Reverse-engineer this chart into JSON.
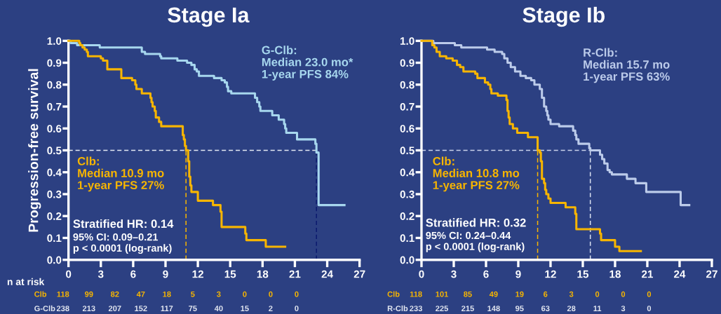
{
  "chart_data": [
    {
      "type": "step",
      "title": "Stage Ia",
      "ylabel": "Progression-free survival",
      "xlim": [
        0,
        27
      ],
      "xticks": [
        0,
        3,
        6,
        9,
        12,
        15,
        18,
        21,
        24,
        27
      ],
      "ylim": [
        0.0,
        1.0
      ],
      "yticks": [
        {
          "value": 0.0,
          "label": "0.0"
        },
        {
          "value": 0.1,
          "label": "0.1"
        },
        {
          "value": 0.2,
          "label": "0.2"
        },
        {
          "value": 0.3,
          "label": "0.3"
        },
        {
          "value": 0.4,
          "label": "0.4"
        },
        {
          "value": 0.5,
          "label": "0.5"
        },
        {
          "value": 0.6,
          "label": "0.6"
        },
        {
          "value": 0.7,
          "label": "0.7"
        },
        {
          "value": 0.8,
          "label": "0.8"
        },
        {
          "value": 0.9,
          "label": "0.9"
        },
        {
          "value": 1.0,
          "label": "1.0"
        }
      ],
      "series": [
        {
          "color": "#f7b500",
          "x": [
            0,
            1.0,
            1.1,
            1.3,
            1.5,
            1.7,
            1.8,
            3.0,
            3.2,
            3.6,
            4.9,
            5.9,
            6.2,
            6.3,
            6.8,
            7.6,
            7.7,
            7.8,
            8.0,
            8.1,
            8.4,
            8.6,
            10.6,
            10.7,
            10.8,
            10.9,
            11.1,
            11.2,
            11.3,
            11.4,
            12.0,
            13.4,
            14.1,
            14.2,
            16.4,
            16.5,
            18.3,
            20.1
          ],
          "values": [
            1.0,
            0.99,
            0.98,
            0.97,
            0.96,
            0.95,
            0.93,
            0.92,
            0.91,
            0.87,
            0.83,
            0.82,
            0.8,
            0.78,
            0.76,
            0.74,
            0.72,
            0.7,
            0.68,
            0.65,
            0.63,
            0.61,
            0.57,
            0.55,
            0.52,
            0.5,
            0.45,
            0.38,
            0.34,
            0.31,
            0.27,
            0.25,
            0.22,
            0.15,
            0.12,
            0.09,
            0.06,
            0.06
          ]
        },
        {
          "color": "#a7d7ee",
          "x": [
            0,
            0.2,
            0.8,
            2.9,
            6.8,
            7.1,
            8.5,
            8.6,
            10.1,
            11.0,
            11.4,
            11.7,
            11.9,
            12.1,
            13.5,
            14.2,
            14.5,
            14.7,
            14.8,
            15.1,
            17.3,
            17.5,
            17.7,
            17.8,
            18.9,
            19.5,
            20.0,
            20.1,
            20.2,
            21.2,
            22.9,
            23.0,
            23.2,
            25.6
          ],
          "values": [
            1.0,
            0.99,
            0.98,
            0.97,
            0.95,
            0.94,
            0.93,
            0.92,
            0.91,
            0.9,
            0.89,
            0.87,
            0.86,
            0.84,
            0.83,
            0.82,
            0.81,
            0.79,
            0.77,
            0.76,
            0.74,
            0.72,
            0.7,
            0.68,
            0.66,
            0.64,
            0.62,
            0.6,
            0.58,
            0.55,
            0.53,
            0.49,
            0.25,
            0.25
          ]
        }
      ],
      "ref_lines": [
        {
          "axis": "y",
          "value": 0.5,
          "color": "#e4e9f4",
          "line_style": "dashed"
        },
        {
          "axis": "x",
          "value": 10.9,
          "color": "#f7b500",
          "line_style": "dashed"
        },
        {
          "axis": "x",
          "value": 23.0,
          "color": "#0b1a6e",
          "line_style": "dashed"
        }
      ],
      "annotations": [
        "G-Clb:\nMedian 23.0 mo*\n1-year PFS 84%",
        "Clb:\nMedian 10.9 mo\n1-year PFS 27%",
        "Stratified HR: 0.14\n95% CI: 0.09–0.21\np < 0.0001 (log-rank)",
        "Clb 118 99 82 47 18 5 3 0 0 0",
        "G-Clb 238 213 207 152 117 75 40 15 2 0",
        "n at risk"
      ]
    },
    {
      "type": "step",
      "title": "Stage Ib",
      "xlim": [
        0,
        27
      ],
      "xticks": [
        0,
        3,
        6,
        9,
        12,
        15,
        18,
        21,
        24,
        27
      ],
      "ylim": [
        0.0,
        1.0
      ],
      "yticks": [
        {
          "value": 0.0,
          "label": "0.0"
        },
        {
          "value": 0.1,
          "label": "0.1"
        },
        {
          "value": 0.2,
          "label": "0.2"
        },
        {
          "value": 0.3,
          "label": "0.3"
        },
        {
          "value": 0.4,
          "label": "0.4"
        },
        {
          "value": 0.5,
          "label": "0.5"
        },
        {
          "value": 0.6,
          "label": "0.6"
        },
        {
          "value": 0.7,
          "label": "0.7"
        },
        {
          "value": 0.8,
          "label": "0.8"
        },
        {
          "value": 0.9,
          "label": "0.9"
        },
        {
          "value": 1.0,
          "label": "1.0"
        }
      ],
      "series": [
        {
          "color": "#f7b500",
          "x": [
            0,
            1.0,
            1.2,
            1.4,
            1.7,
            2.3,
            2.9,
            3.3,
            3.6,
            3.9,
            5.0,
            5.2,
            5.9,
            6.2,
            6.4,
            6.5,
            7.1,
            7.9,
            8.0,
            8.1,
            8.2,
            8.5,
            8.9,
            9.9,
            10.8,
            11.0,
            11.1,
            11.2,
            11.4,
            11.5,
            11.6,
            11.8,
            12.0,
            13.4,
            14.3,
            14.4,
            16.6,
            16.7,
            18.0,
            18.4,
            20.4
          ],
          "values": [
            1.0,
            0.98,
            0.97,
            0.95,
            0.93,
            0.92,
            0.91,
            0.89,
            0.88,
            0.86,
            0.85,
            0.83,
            0.81,
            0.8,
            0.78,
            0.76,
            0.75,
            0.73,
            0.68,
            0.65,
            0.62,
            0.6,
            0.58,
            0.56,
            0.5,
            0.49,
            0.45,
            0.37,
            0.35,
            0.32,
            0.3,
            0.28,
            0.26,
            0.24,
            0.21,
            0.14,
            0.12,
            0.09,
            0.06,
            0.04,
            0.04
          ]
        },
        {
          "color": "#bccbea",
          "x": [
            0,
            1.1,
            3.1,
            3.7,
            6.1,
            6.8,
            7.5,
            7.7,
            8.0,
            8.3,
            8.7,
            9.2,
            9.7,
            10.2,
            10.5,
            11.0,
            11.2,
            11.4,
            11.6,
            11.7,
            11.8,
            12.0,
            12.8,
            14.1,
            14.3,
            14.4,
            14.6,
            15.6,
            15.7,
            16.6,
            16.8,
            17.0,
            17.3,
            17.5,
            17.7,
            19.1,
            19.9,
            20.9,
            24.1,
            24.9
          ],
          "values": [
            1.0,
            0.99,
            0.98,
            0.97,
            0.96,
            0.95,
            0.94,
            0.92,
            0.9,
            0.88,
            0.86,
            0.84,
            0.83,
            0.82,
            0.8,
            0.78,
            0.74,
            0.7,
            0.68,
            0.66,
            0.64,
            0.62,
            0.61,
            0.59,
            0.57,
            0.55,
            0.53,
            0.51,
            0.5,
            0.48,
            0.46,
            0.44,
            0.41,
            0.4,
            0.39,
            0.37,
            0.35,
            0.31,
            0.25,
            0.25
          ]
        }
      ],
      "ref_lines": [
        {
          "axis": "y",
          "value": 0.5,
          "color": "#c9d2ea",
          "line_style": "dashed"
        },
        {
          "axis": "x",
          "value": 10.8,
          "color": "#f7b500",
          "line_style": "dashed"
        },
        {
          "axis": "x",
          "value": 15.7,
          "color": "#d8dff0",
          "line_style": "dashed"
        }
      ],
      "annotations": [
        "R-Clb:\nMedian 15.7 mo\n1-year PFS 63%",
        "Clb:\nMedian 10.8 mo\n1-year PFS 27%",
        "Stratified HR: 0.32\n95% CI: 0.24–0.44\np < 0.0001 (log-rank)",
        "Clb 118 101 85 49 19 6 3 0 0 0",
        "R-Clb 233 225 215 148 95 63 28 11 3 0"
      ]
    }
  ]
}
